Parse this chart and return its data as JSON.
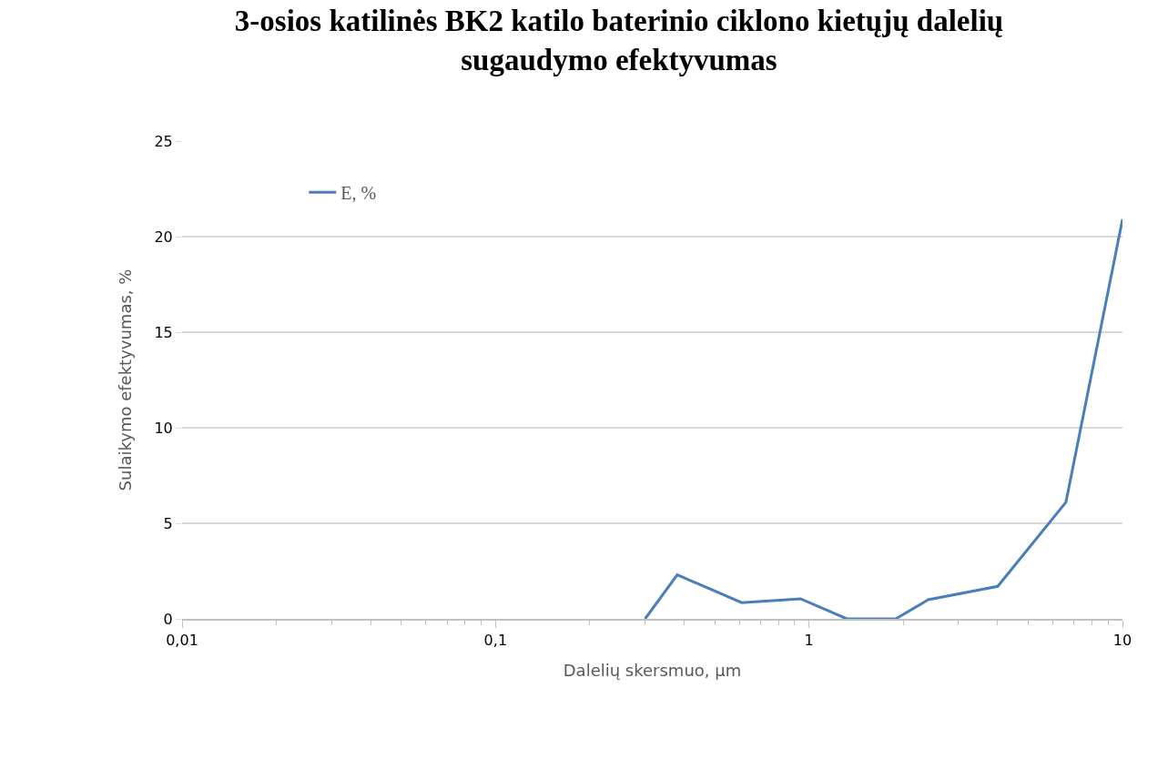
{
  "chart_data": {
    "type": "line",
    "title": "3-osios katilinės BK2 katilo baterinio ciklono kietųjų dalelių sugaudymo efektyvumas",
    "xlabel": "Dalelių skersmuo, µm",
    "ylabel": "Sulaikymo efektyvumas, %",
    "log": "x",
    "xlim": [
      0.01,
      10
    ],
    "xticks": [
      {
        "value": 0.01,
        "label": "0,01"
      },
      {
        "value": 0.1,
        "label": "0,1"
      },
      1,
      10
    ],
    "ylim": [
      0,
      25
    ],
    "yticks": [
      0,
      5,
      10,
      15,
      20,
      25
    ],
    "grid": "y",
    "legend": "top left",
    "marker": "none",
    "line_style": "solid",
    "x": [
      0.3,
      0.38,
      0.61,
      0.94,
      1.32,
      1.89,
      2.4,
      4.0,
      6.6,
      10
    ],
    "series": [
      {
        "name": "E, %",
        "color": "#4a7ebb",
        "values": [
          0,
          2.3,
          0.85,
          1.05,
          0,
          0,
          1.0,
          1.7,
          6.1,
          20.9
        ]
      }
    ]
  }
}
